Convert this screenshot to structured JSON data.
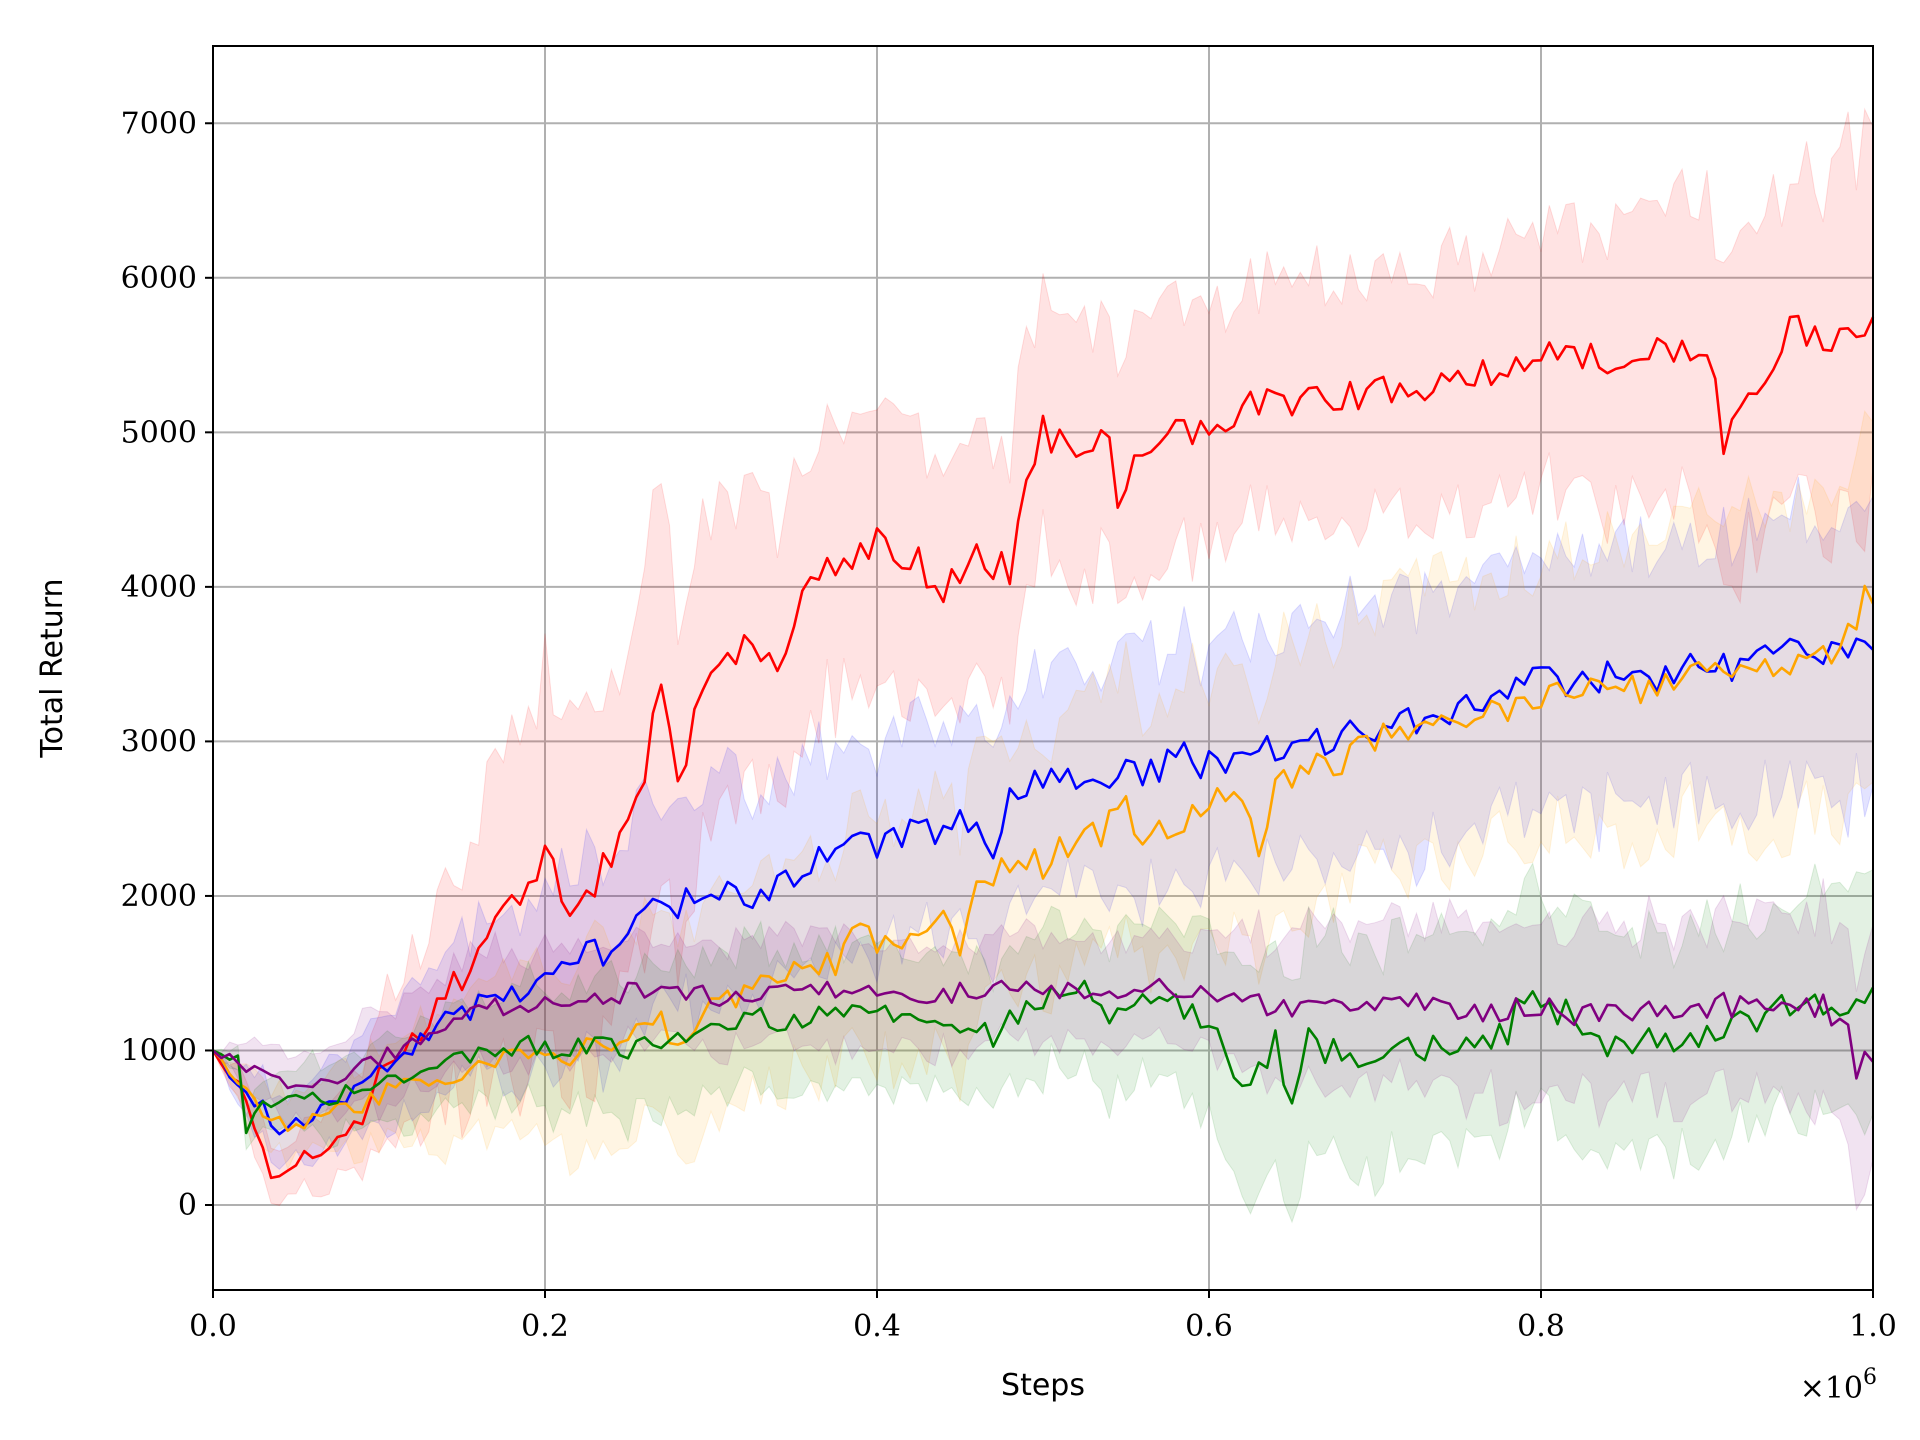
{
  "chart_data": {
    "type": "line",
    "title": "",
    "xlabel": "Steps",
    "ylabel": "Total Return",
    "x_multiplier_label": "×10^6",
    "xlim": [
      0.0,
      1.0
    ],
    "ylim": [
      -550,
      7500
    ],
    "xticks": [
      "0.0",
      "0.2",
      "0.4",
      "0.6",
      "0.8",
      "1.0"
    ],
    "xtick_values": [
      0.0,
      0.2,
      0.4,
      0.6,
      0.8,
      1.0
    ],
    "yticks": [
      "0",
      "1000",
      "2000",
      "3000",
      "4000",
      "5000",
      "6000",
      "7000"
    ],
    "ytick_values": [
      0,
      1000,
      2000,
      3000,
      4000,
      5000,
      6000,
      7000
    ],
    "grid": true,
    "legend": "none",
    "x_scale_note": "x values in units of 10^6 steps",
    "series": [
      {
        "color": "#ff0000",
        "band_color": "#ff0000",
        "x": [
          0.0,
          0.02,
          0.035,
          0.05,
          0.07,
          0.09,
          0.1,
          0.12,
          0.14,
          0.16,
          0.18,
          0.19,
          0.2,
          0.21,
          0.22,
          0.23,
          0.25,
          0.26,
          0.27,
          0.28,
          0.3,
          0.32,
          0.34,
          0.36,
          0.38,
          0.4,
          0.42,
          0.44,
          0.46,
          0.48,
          0.49,
          0.5,
          0.52,
          0.54,
          0.545,
          0.56,
          0.6,
          0.62,
          0.65,
          0.7,
          0.75,
          0.8,
          0.85,
          0.9,
          0.91,
          0.95,
          0.97,
          1.0
        ],
        "mean": [
          1000,
          700,
          170,
          300,
          380,
          550,
          950,
          1050,
          1350,
          1580,
          1950,
          2000,
          2350,
          1950,
          1900,
          2100,
          2450,
          2750,
          3400,
          2800,
          3400,
          3600,
          3500,
          4000,
          4200,
          4300,
          4200,
          4000,
          4200,
          4100,
          4600,
          5000,
          4850,
          4950,
          4550,
          4950,
          5000,
          5150,
          5200,
          5250,
          5350,
          5500,
          5450,
          5600,
          4950,
          5700,
          5550,
          5750
        ],
        "band": [
          0,
          150,
          200,
          200,
          250,
          300,
          450,
          550,
          700,
          850,
          1100,
          1150,
          1200,
          1150,
          1100,
          1100,
          1150,
          1150,
          1200,
          1100,
          1000,
          950,
          900,
          850,
          850,
          850,
          800,
          800,
          800,
          800,
          800,
          800,
          800,
          800,
          800,
          800,
          750,
          750,
          750,
          750,
          800,
          850,
          900,
          1000,
          1000,
          1050,
          1100,
          1200
        ]
      },
      {
        "color": "#0000ff",
        "band_color": "#0000ff",
        "x": [
          0.0,
          0.02,
          0.03,
          0.04,
          0.06,
          0.08,
          0.1,
          0.12,
          0.14,
          0.16,
          0.18,
          0.2,
          0.22,
          0.24,
          0.26,
          0.28,
          0.3,
          0.32,
          0.34,
          0.36,
          0.38,
          0.4,
          0.42,
          0.44,
          0.46,
          0.47,
          0.48,
          0.5,
          0.52,
          0.54,
          0.56,
          0.58,
          0.6,
          0.62,
          0.64,
          0.66,
          0.68,
          0.7,
          0.72,
          0.74,
          0.76,
          0.78,
          0.8,
          0.82,
          0.84,
          0.86,
          0.88,
          0.9,
          0.92,
          0.94,
          0.96,
          0.98,
          1.0
        ],
        "mean": [
          1000,
          700,
          650,
          450,
          600,
          650,
          900,
          1000,
          1200,
          1300,
          1350,
          1500,
          1650,
          1600,
          1900,
          1950,
          2100,
          2000,
          2050,
          2200,
          2300,
          2350,
          2400,
          2450,
          2500,
          2200,
          2650,
          2800,
          2700,
          2750,
          2800,
          2900,
          2850,
          2850,
          2950,
          3000,
          3050,
          3100,
          3150,
          3200,
          3250,
          3350,
          3400,
          3350,
          3450,
          3400,
          3450,
          3500,
          3500,
          3550,
          3600,
          3600,
          3650
        ],
        "band": [
          0,
          150,
          200,
          200,
          250,
          300,
          350,
          400,
          450,
          500,
          550,
          600,
          650,
          700,
          700,
          700,
          700,
          700,
          700,
          700,
          700,
          700,
          700,
          700,
          700,
          700,
          700,
          700,
          700,
          700,
          750,
          750,
          750,
          750,
          750,
          750,
          800,
          800,
          800,
          800,
          800,
          800,
          800,
          800,
          850,
          850,
          850,
          850,
          900,
          900,
          900,
          950,
          950
        ]
      },
      {
        "color": "#ffa500",
        "band_color": "#ffa500",
        "x": [
          0.0,
          0.02,
          0.03,
          0.05,
          0.07,
          0.09,
          0.11,
          0.13,
          0.15,
          0.17,
          0.19,
          0.21,
          0.23,
          0.25,
          0.27,
          0.28,
          0.3,
          0.32,
          0.34,
          0.36,
          0.38,
          0.39,
          0.4,
          0.42,
          0.44,
          0.45,
          0.46,
          0.48,
          0.5,
          0.52,
          0.54,
          0.55,
          0.56,
          0.58,
          0.6,
          0.62,
          0.63,
          0.64,
          0.66,
          0.68,
          0.7,
          0.72,
          0.74,
          0.76,
          0.78,
          0.8,
          0.82,
          0.84,
          0.86,
          0.88,
          0.9,
          0.92,
          0.94,
          0.96,
          0.98,
          1.0
        ],
        "mean": [
          1000,
          750,
          550,
          500,
          600,
          650,
          750,
          800,
          850,
          900,
          950,
          950,
          1000,
          1100,
          1150,
          950,
          1350,
          1400,
          1450,
          1500,
          1600,
          1900,
          1700,
          1700,
          1800,
          1600,
          2000,
          2200,
          2200,
          2350,
          2450,
          2600,
          2400,
          2500,
          2600,
          2700,
          2350,
          2750,
          2850,
          2900,
          3000,
          3050,
          3100,
          3150,
          3200,
          3250,
          3300,
          3350,
          3350,
          3400,
          3450,
          3450,
          3500,
          3550,
          3600,
          4000
        ],
        "band": [
          0,
          150,
          200,
          200,
          250,
          300,
          350,
          400,
          450,
          500,
          550,
          600,
          650,
          650,
          700,
          700,
          700,
          700,
          700,
          700,
          750,
          750,
          750,
          750,
          800,
          800,
          800,
          800,
          800,
          800,
          800,
          850,
          850,
          850,
          850,
          850,
          850,
          850,
          850,
          850,
          900,
          900,
          900,
          900,
          900,
          900,
          950,
          950,
          950,
          950,
          1000,
          1000,
          1000,
          1050,
          1050,
          1100
        ]
      },
      {
        "color": "#008000",
        "band_color": "#008000",
        "x": [
          0.0,
          0.015,
          0.02,
          0.03,
          0.05,
          0.07,
          0.09,
          0.11,
          0.13,
          0.15,
          0.17,
          0.19,
          0.21,
          0.23,
          0.25,
          0.27,
          0.29,
          0.31,
          0.33,
          0.35,
          0.37,
          0.39,
          0.41,
          0.43,
          0.45,
          0.47,
          0.49,
          0.51,
          0.53,
          0.54,
          0.56,
          0.58,
          0.6,
          0.61,
          0.62,
          0.64,
          0.65,
          0.66,
          0.68,
          0.7,
          0.72,
          0.74,
          0.76,
          0.78,
          0.79,
          0.8,
          0.82,
          0.84,
          0.86,
          0.88,
          0.9,
          0.92,
          0.94,
          0.96,
          0.98,
          1.0
        ],
        "mean": [
          1000,
          950,
          480,
          650,
          700,
          700,
          750,
          800,
          900,
          950,
          1000,
          1050,
          1000,
          1050,
          1000,
          1050,
          1100,
          1150,
          1200,
          1200,
          1250,
          1300,
          1250,
          1200,
          1150,
          1100,
          1300,
          1350,
          1400,
          1150,
          1400,
          1350,
          1100,
          1000,
          800,
          1050,
          650,
          1050,
          950,
          950,
          1000,
          1050,
          1000,
          1100,
          1400,
          1200,
          1250,
          1050,
          1100,
          1050,
          1100,
          1200,
          1250,
          1300,
          1250,
          1350
        ],
        "band": [
          0,
          80,
          120,
          150,
          200,
          250,
          250,
          300,
          300,
          350,
          350,
          400,
          400,
          400,
          450,
          450,
          450,
          450,
          450,
          450,
          450,
          450,
          450,
          450,
          450,
          450,
          450,
          450,
          500,
          500,
          500,
          550,
          600,
          650,
          700,
          700,
          700,
          700,
          700,
          700,
          700,
          700,
          700,
          700,
          700,
          700,
          700,
          700,
          700,
          700,
          700,
          700,
          700,
          700,
          700,
          700
        ]
      },
      {
        "color": "#800080",
        "band_color": "#800080",
        "x": [
          0.0,
          0.02,
          0.04,
          0.06,
          0.08,
          0.1,
          0.12,
          0.14,
          0.16,
          0.18,
          0.2,
          0.22,
          0.24,
          0.26,
          0.28,
          0.3,
          0.32,
          0.34,
          0.36,
          0.38,
          0.4,
          0.42,
          0.44,
          0.46,
          0.48,
          0.5,
          0.52,
          0.54,
          0.56,
          0.58,
          0.6,
          0.62,
          0.64,
          0.66,
          0.68,
          0.7,
          0.72,
          0.74,
          0.76,
          0.78,
          0.8,
          0.82,
          0.84,
          0.86,
          0.88,
          0.9,
          0.92,
          0.94,
          0.96,
          0.98,
          0.99,
          1.0
        ],
        "mean": [
          1000,
          900,
          800,
          750,
          850,
          950,
          1050,
          1200,
          1250,
          1300,
          1300,
          1350,
          1350,
          1400,
          1400,
          1350,
          1350,
          1400,
          1400,
          1400,
          1350,
          1350,
          1350,
          1400,
          1400,
          1400,
          1400,
          1400,
          1400,
          1400,
          1400,
          1300,
          1300,
          1300,
          1250,
          1250,
          1300,
          1250,
          1250,
          1250,
          1250,
          1250,
          1250,
          1250,
          1250,
          1300,
          1300,
          1300,
          1300,
          1250,
          900,
          920
        ],
        "band": [
          0,
          150,
          200,
          200,
          250,
          300,
          300,
          350,
          350,
          350,
          350,
          350,
          350,
          350,
          350,
          350,
          350,
          350,
          350,
          350,
          350,
          350,
          350,
          350,
          350,
          350,
          350,
          350,
          350,
          350,
          400,
          450,
          500,
          500,
          500,
          500,
          500,
          550,
          550,
          550,
          550,
          550,
          550,
          550,
          550,
          550,
          550,
          600,
          600,
          650,
          700,
          800
        ]
      }
    ]
  }
}
